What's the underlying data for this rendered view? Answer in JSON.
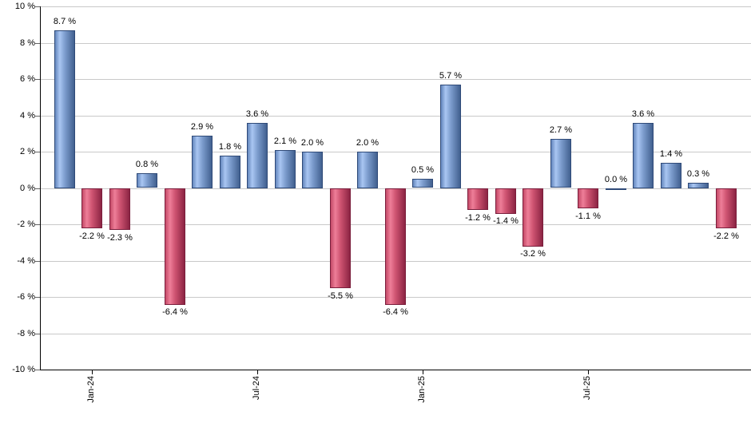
{
  "chart_data": {
    "type": "bar",
    "title": "",
    "xlabel": "",
    "ylabel": "",
    "ylim": [
      -10,
      10
    ],
    "grid": true,
    "legend": "none",
    "y_ticks": [
      {
        "value": 10,
        "label": "10 %"
      },
      {
        "value": 8,
        "label": "8 %"
      },
      {
        "value": 6,
        "label": "6 %"
      },
      {
        "value": 4,
        "label": "4 %"
      },
      {
        "value": 2,
        "label": "2 %"
      },
      {
        "value": 0,
        "label": "0 %"
      },
      {
        "value": -2,
        "label": "-2 %"
      },
      {
        "value": -4,
        "label": "-4 %"
      },
      {
        "value": -6,
        "label": "-6 %"
      },
      {
        "value": -8,
        "label": "-8 %"
      },
      {
        "value": -10,
        "label": "-10 %"
      }
    ],
    "x_ticks": [
      {
        "bar_index": 1,
        "label": "Jan-24"
      },
      {
        "bar_index": 7,
        "label": "Jul-24"
      },
      {
        "bar_index": 13,
        "label": "Jan-25"
      },
      {
        "bar_index": 19,
        "label": "Jul-25"
      }
    ],
    "bars": [
      {
        "value": 8.7,
        "label": "8.7 %"
      },
      {
        "value": -2.2,
        "label": "-2.2 %"
      },
      {
        "value": -2.3,
        "label": "-2.3 %"
      },
      {
        "value": 0.8,
        "label": "0.8 %"
      },
      {
        "value": -6.4,
        "label": "-6.4 %"
      },
      {
        "value": 2.9,
        "label": "2.9 %"
      },
      {
        "value": 1.8,
        "label": "1.8 %"
      },
      {
        "value": 3.6,
        "label": "3.6 %"
      },
      {
        "value": 2.1,
        "label": "2.1 %"
      },
      {
        "value": 2.0,
        "label": "2.0 %"
      },
      {
        "value": -5.5,
        "label": "-5.5 %"
      },
      {
        "value": 2.0,
        "label": "2.0 %"
      },
      {
        "value": -6.4,
        "label": "-6.4 %"
      },
      {
        "value": 0.5,
        "label": "0.5 %"
      },
      {
        "value": 5.7,
        "label": "5.7 %"
      },
      {
        "value": -1.2,
        "label": "-1.2 %"
      },
      {
        "value": -1.4,
        "label": "-1.4 %"
      },
      {
        "value": -3.2,
        "label": "-3.2 %"
      },
      {
        "value": 2.7,
        "label": "2.7 %"
      },
      {
        "value": -1.1,
        "label": "-1.1 %"
      },
      {
        "value": 0.0,
        "label": "0.0 %"
      },
      {
        "value": 3.6,
        "label": "3.6 %"
      },
      {
        "value": 1.4,
        "label": "1.4 %"
      },
      {
        "value": 0.3,
        "label": "0.3 %"
      },
      {
        "value": -2.2,
        "label": "-2.2 %"
      }
    ],
    "colors": {
      "positive_edge": "#6487bd",
      "positive_light": "#a9c6f2",
      "positive_mid": "#7e9ecf",
      "positive_dark": "#41608f",
      "positive_border": "#2f4a78",
      "negative_edge": "#c44a68",
      "negative_light": "#ee7e98",
      "negative_mid": "#cf5472",
      "negative_dark": "#8c2443",
      "negative_border": "#7a1e3c",
      "gridline": "#c9c9c9",
      "tick": "#666666",
      "axis": "#000000",
      "label": "#000000",
      "background": "#ffffff"
    }
  }
}
